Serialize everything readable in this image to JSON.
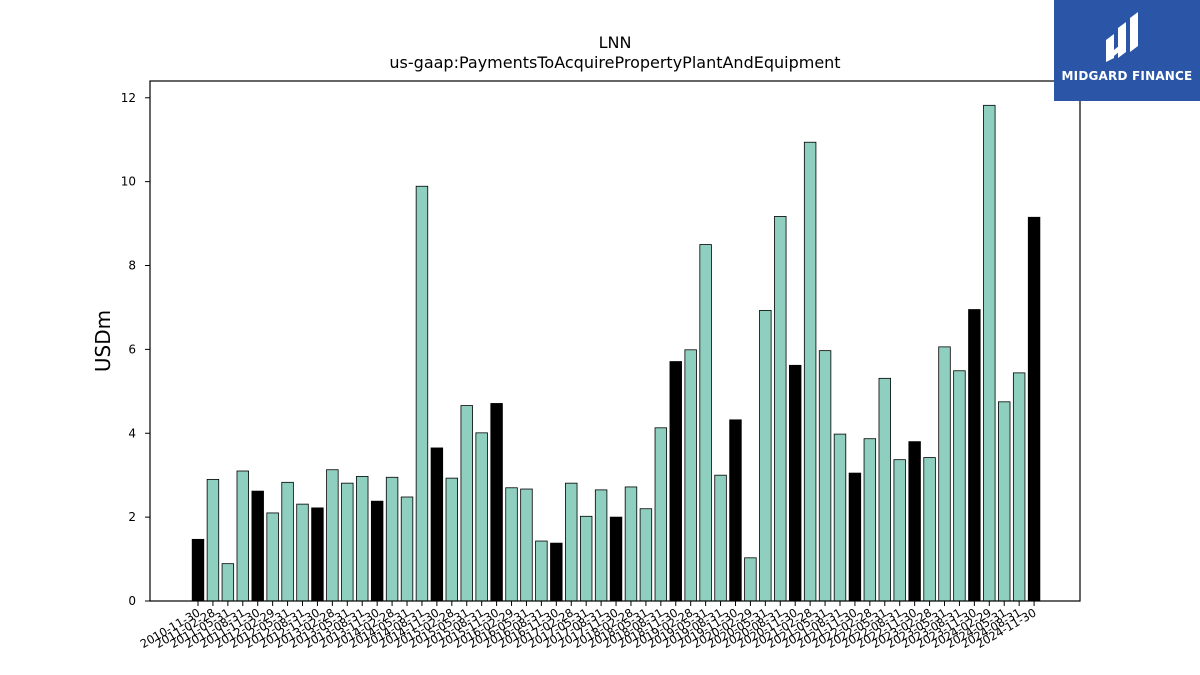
{
  "header": {
    "title": "LNN",
    "subtitle": "us-gaap:PaymentsToAcquirePropertyPlantAndEquipment"
  },
  "brand": {
    "name": "MIDGARD FINANCE",
    "color": "#2b56a8"
  },
  "colors": {
    "quarter": "#8fcfc0",
    "annual": "#000000"
  },
  "chart_data": {
    "type": "bar",
    "ylabel": "USDm",
    "ylim": [
      0,
      12.4
    ],
    "yticks": [
      0,
      2,
      4,
      6,
      8,
      10,
      12
    ],
    "categories": [
      "2010-11-30",
      "2011-02-28",
      "2011-05-31",
      "2011-08-31",
      "2011-11-30",
      "2012-02-29",
      "2012-05-31",
      "2012-08-31",
      "2012-11-30",
      "2013-02-28",
      "2013-05-31",
      "2013-08-31",
      "2013-11-30",
      "2014-02-28",
      "2014-05-31",
      "2014-08-31",
      "2014-11-30",
      "2015-02-28",
      "2015-05-31",
      "2015-08-31",
      "2015-11-30",
      "2016-02-29",
      "2016-05-31",
      "2016-08-31",
      "2016-11-30",
      "2017-02-28",
      "2017-05-31",
      "2017-08-31",
      "2017-11-30",
      "2018-02-28",
      "2018-05-31",
      "2018-08-31",
      "2018-11-30",
      "2019-02-28",
      "2019-05-31",
      "2019-08-31",
      "2019-11-30",
      "2020-02-29",
      "2020-05-31",
      "2020-08-31",
      "2020-11-30",
      "2021-02-28",
      "2021-05-31",
      "2021-08-31",
      "2021-11-30",
      "2022-02-28",
      "2022-05-31",
      "2022-08-31",
      "2022-11-30",
      "2023-02-28",
      "2023-05-31",
      "2023-08-31",
      "2023-11-30",
      "2024-02-29",
      "2024-05-31",
      "2024-08-31",
      "2024-11-30"
    ],
    "values": [
      1.47,
      2.9,
      0.89,
      3.1,
      2.62,
      2.1,
      2.83,
      2.31,
      2.22,
      3.13,
      2.81,
      2.97,
      2.38,
      2.95,
      2.48,
      9.89,
      3.65,
      2.93,
      4.66,
      4.01,
      4.71,
      2.7,
      2.67,
      1.43,
      1.38,
      2.81,
      2.02,
      2.65,
      2.0,
      2.72,
      2.2,
      4.13,
      5.71,
      5.99,
      8.5,
      3.0,
      4.32,
      1.03,
      6.93,
      9.17,
      5.62,
      10.94,
      5.97,
      3.98,
      3.05,
      3.87,
      5.31,
      3.37,
      3.8,
      3.42,
      6.06,
      5.49,
      6.95,
      11.82,
      4.75,
      5.44,
      9.15
    ],
    "highlight": [
      true,
      false,
      false,
      false,
      true,
      false,
      false,
      false,
      true,
      false,
      false,
      false,
      true,
      false,
      false,
      false,
      true,
      false,
      false,
      false,
      true,
      false,
      false,
      false,
      true,
      false,
      false,
      false,
      true,
      false,
      false,
      false,
      true,
      false,
      false,
      false,
      true,
      false,
      false,
      false,
      true,
      false,
      false,
      false,
      true,
      false,
      false,
      false,
      true,
      false,
      false,
      false,
      true,
      false,
      false,
      false,
      true
    ]
  }
}
